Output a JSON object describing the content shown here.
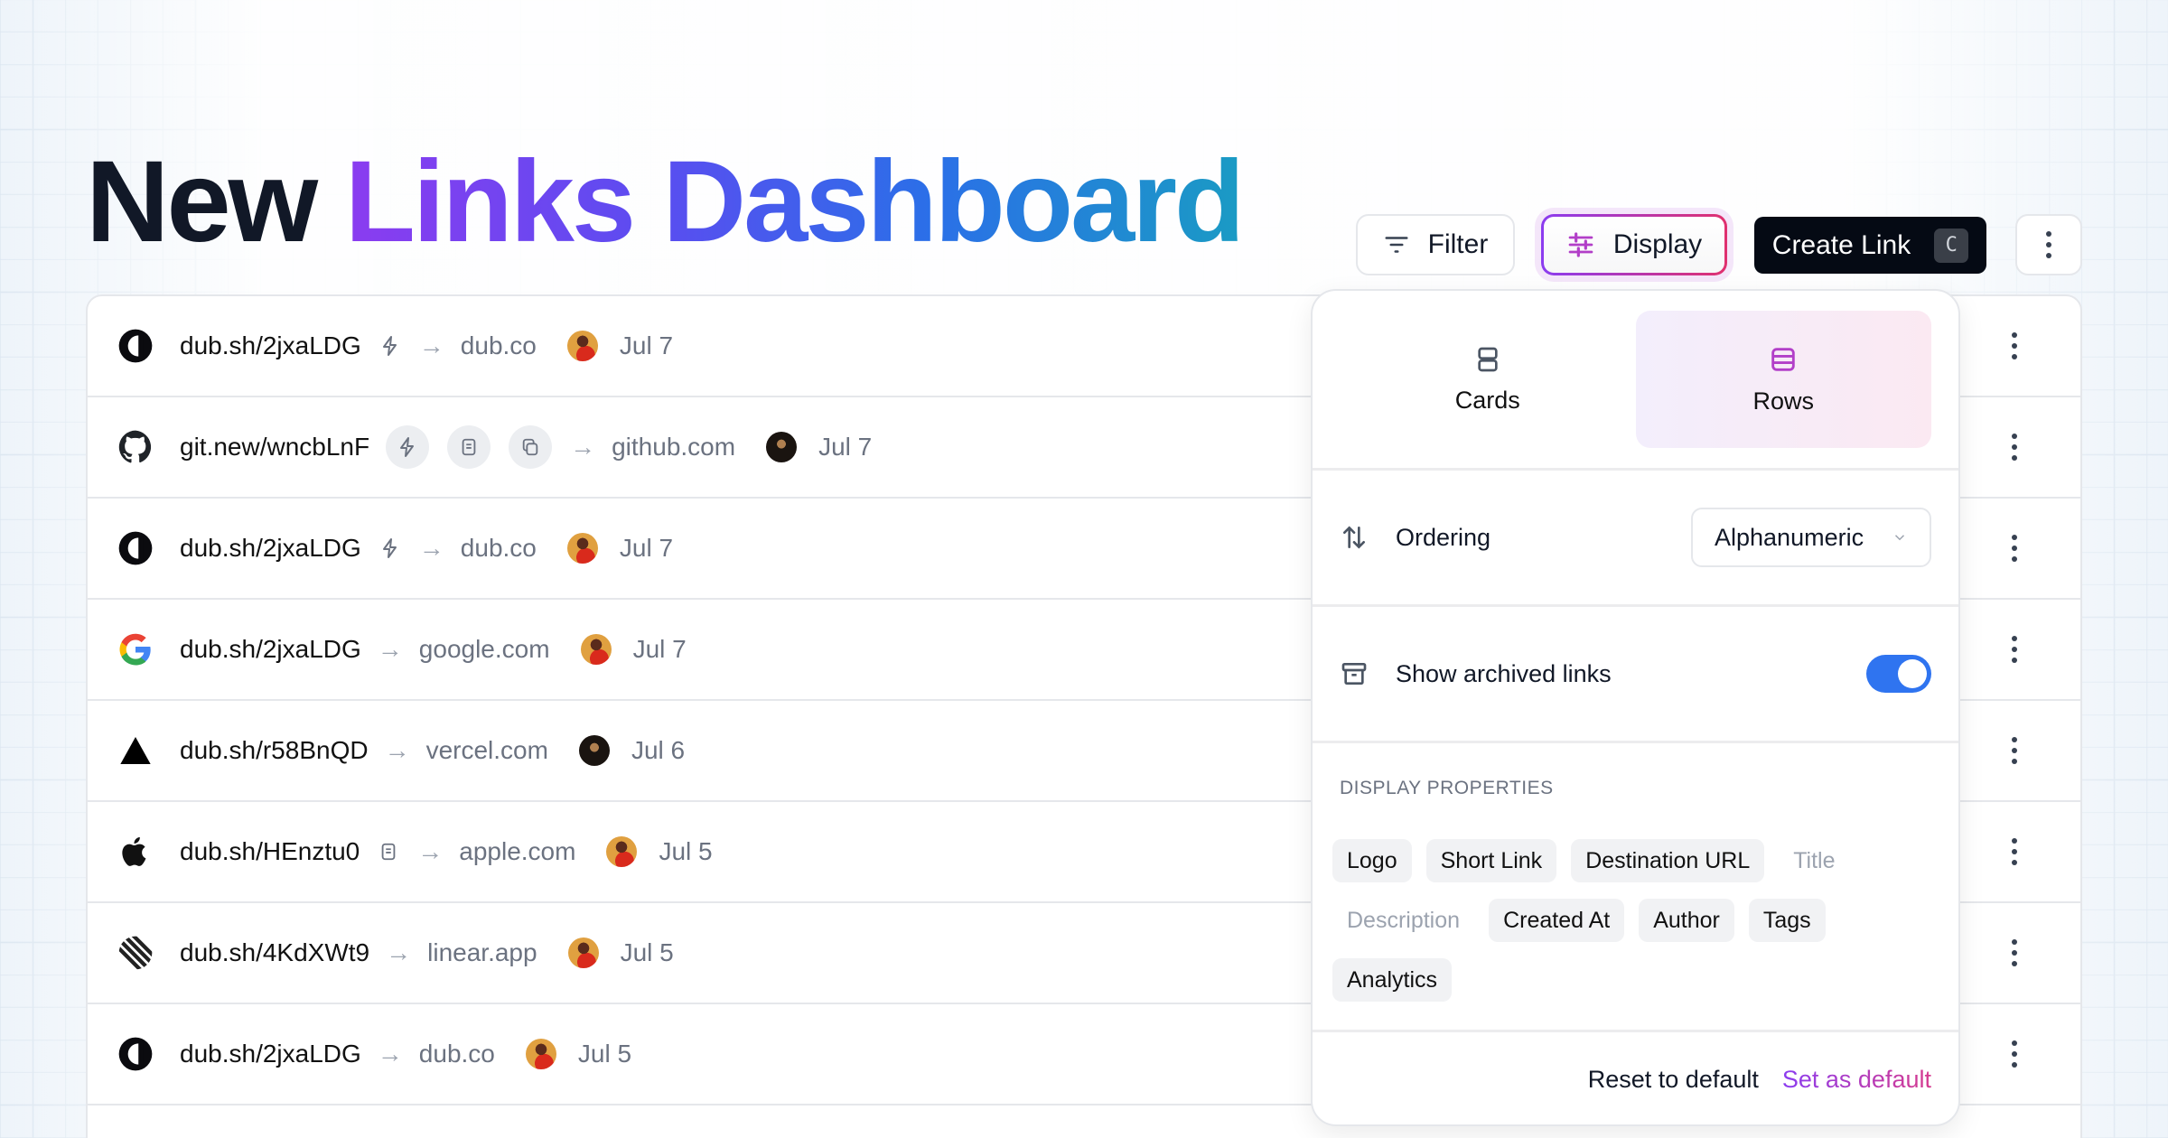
{
  "title": {
    "part1": "New",
    "part2": "Links Dashboard"
  },
  "toolbar": {
    "filter": "Filter",
    "display": "Display",
    "create": "Create Link",
    "create_shortcut": "C"
  },
  "rows": [
    {
      "logo": "dub",
      "short": "dub.sh/2jxaLDG",
      "icons": [
        "bolt"
      ],
      "bubbles": false,
      "dest": "dub.co",
      "avatar": "f",
      "date": "Jul 7"
    },
    {
      "logo": "github",
      "short": "git.new/wncbLnF",
      "icons": [
        "bolt",
        "note",
        "copy"
      ],
      "bubbles": true,
      "dest": "github.com",
      "avatar": "m",
      "date": "Jul 7"
    },
    {
      "logo": "dub",
      "short": "dub.sh/2jxaLDG",
      "icons": [
        "bolt"
      ],
      "bubbles": false,
      "dest": "dub.co",
      "avatar": "f",
      "date": "Jul 7"
    },
    {
      "logo": "google",
      "short": "dub.sh/2jxaLDG",
      "icons": [],
      "bubbles": false,
      "dest": "google.com",
      "avatar": "f",
      "date": "Jul 7"
    },
    {
      "logo": "vercel",
      "short": "dub.sh/r58BnQD",
      "icons": [],
      "bubbles": false,
      "dest": "vercel.com",
      "avatar": "m",
      "date": "Jul 6"
    },
    {
      "logo": "apple",
      "short": "dub.sh/HEnztu0",
      "icons": [
        "note"
      ],
      "bubbles": false,
      "dest": "apple.com",
      "avatar": "f",
      "date": "Jul 5"
    },
    {
      "logo": "linear",
      "short": "dub.sh/4KdXWt9",
      "icons": [],
      "bubbles": false,
      "dest": "linear.app",
      "avatar": "f",
      "date": "Jul 5"
    },
    {
      "logo": "dub",
      "short": "dub.sh/2jxaLDG",
      "icons": [],
      "bubbles": false,
      "dest": "dub.co",
      "avatar": "f",
      "date": "Jul 5"
    }
  ],
  "popover": {
    "views": [
      {
        "label": "Cards",
        "selected": false
      },
      {
        "label": "Rows",
        "selected": true
      }
    ],
    "ordering_label": "Ordering",
    "ordering_value": "Alphanumeric",
    "archived_label": "Show archived links",
    "archived_on": true,
    "props_heading": "DISPLAY PROPERTIES",
    "props": [
      {
        "label": "Logo",
        "on": true
      },
      {
        "label": "Short Link",
        "on": true
      },
      {
        "label": "Destination URL",
        "on": true
      },
      {
        "label": "Title",
        "on": false
      },
      {
        "label": "Description",
        "on": false
      },
      {
        "label": "Created At",
        "on": true
      },
      {
        "label": "Author",
        "on": true
      },
      {
        "label": "Tags",
        "on": true
      },
      {
        "label": "Analytics",
        "on": true
      }
    ],
    "reset": "Reset to default",
    "set_default": "Set as default"
  },
  "colors": {
    "accent_purple": "#8b3cf0",
    "accent_pink": "#d63b8f",
    "toggle_blue": "#2f74f0",
    "primary_button": "#050a14"
  }
}
